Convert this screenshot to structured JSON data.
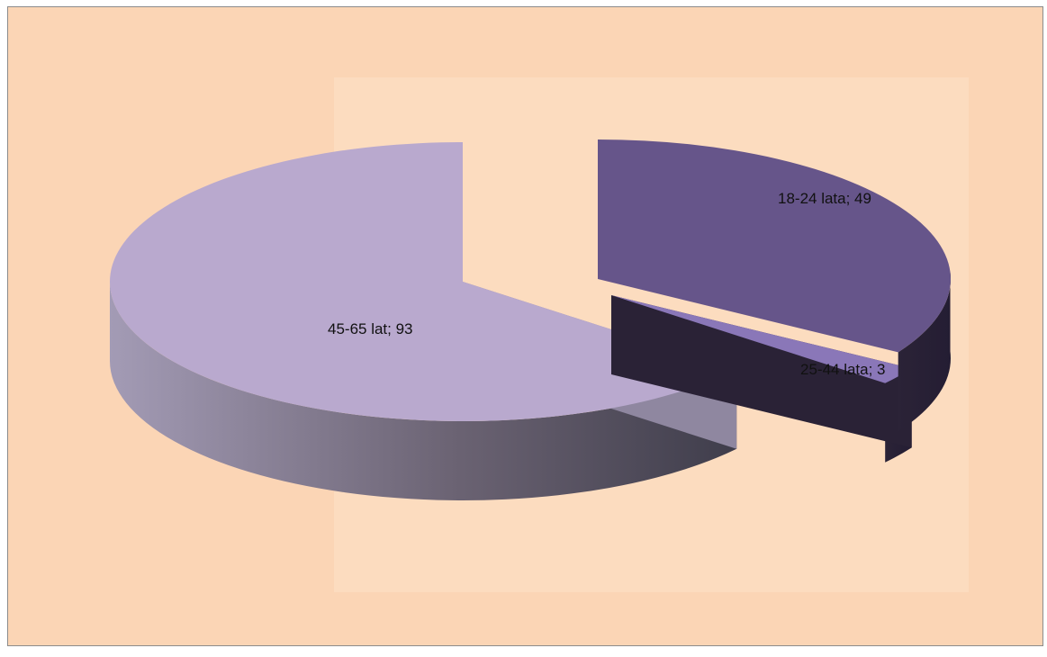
{
  "chart_data": {
    "type": "pie",
    "style": "3d-exploded",
    "title": "",
    "slices": [
      {
        "label": "18-24 lata",
        "value": 49,
        "color": "#66558a",
        "data_label": "18-24 lata; 49"
      },
      {
        "label": "25-44 lata",
        "value": 3,
        "color": "#8a77b8",
        "data_label": "25-44 lata; 3"
      },
      {
        "label": "45-65 lat",
        "value": 93,
        "color": "#b9a9ce",
        "data_label": "45-65 lat; 93"
      }
    ],
    "legend": "none",
    "background_color": "#fbd5b5"
  }
}
